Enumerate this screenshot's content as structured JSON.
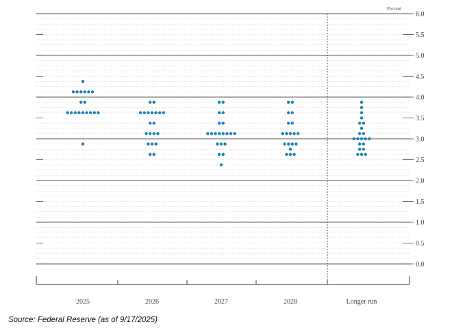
{
  "chart_data": {
    "type": "scatter",
    "unit_label": "Percent",
    "categories": [
      "2025",
      "2026",
      "2027",
      "2028",
      "Longer run"
    ],
    "ylim": [
      0,
      6
    ],
    "yticks": [
      "0.0",
      "0.5",
      "1.0",
      "1.5",
      "2.0",
      "2.5",
      "3.0",
      "3.5",
      "4.0",
      "4.5",
      "5.0",
      "5.5",
      "6.0"
    ],
    "dot_color": "#1a7fb0",
    "dots": [
      {
        "category": "2025",
        "counts": [
          [
            4.375,
            1
          ],
          [
            4.125,
            6
          ],
          [
            3.875,
            2
          ],
          [
            3.625,
            9
          ],
          [
            2.875,
            1
          ]
        ]
      },
      {
        "category": "2026",
        "counts": [
          [
            3.875,
            2
          ],
          [
            3.625,
            7
          ],
          [
            3.375,
            2
          ],
          [
            3.125,
            4
          ],
          [
            2.875,
            3
          ],
          [
            2.625,
            2
          ]
        ]
      },
      {
        "category": "2027",
        "counts": [
          [
            3.875,
            2
          ],
          [
            3.625,
            2
          ],
          [
            3.375,
            2
          ],
          [
            3.125,
            8
          ],
          [
            2.875,
            3
          ],
          [
            2.625,
            2
          ],
          [
            2.375,
            1
          ]
        ]
      },
      {
        "category": "2028",
        "counts": [
          [
            3.875,
            2
          ],
          [
            3.625,
            2
          ],
          [
            3.375,
            2
          ],
          [
            3.125,
            5
          ],
          [
            2.875,
            4
          ],
          [
            2.75,
            1
          ],
          [
            2.625,
            3
          ]
        ]
      },
      {
        "category": "Longer run",
        "counts": [
          [
            3.875,
            1
          ],
          [
            3.75,
            1
          ],
          [
            3.625,
            1
          ],
          [
            3.5,
            1
          ],
          [
            3.375,
            2
          ],
          [
            3.25,
            1
          ],
          [
            3.125,
            2
          ],
          [
            3.0,
            5
          ],
          [
            2.875,
            2
          ],
          [
            2.75,
            2
          ],
          [
            2.625,
            3
          ]
        ]
      }
    ]
  },
  "source_note": "Source: Federal Reserve (as of 9/17/2025)"
}
